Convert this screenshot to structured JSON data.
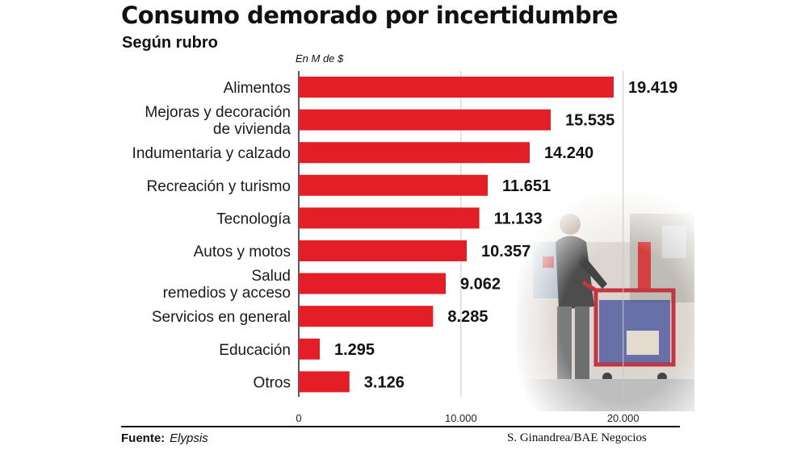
{
  "header": {
    "title": "Consumo demorado por incertidumbre",
    "subtitle": "Según rubro",
    "unit": "En M de $"
  },
  "footer": {
    "source_label": "Fuente:",
    "source_value": "Elypsis",
    "credit": "S. Ginandrea/BAE Negocios"
  },
  "colors": {
    "bar": "#e41e26",
    "grid": "#c8c8c8",
    "photo": "shopping-cart-photo"
  },
  "chart_data": {
    "type": "bar",
    "orientation": "horizontal",
    "title": "Consumo demorado por incertidumbre",
    "subtitle": "Según rubro",
    "unit": "En M de $",
    "categories": [
      [
        "Alimentos"
      ],
      [
        "Mejoras y decoración",
        "de vivienda"
      ],
      [
        "Indumentaria y calzado"
      ],
      [
        "Recreación y turismo"
      ],
      [
        "Tecnología"
      ],
      [
        "Autos y motos"
      ],
      [
        "Salud",
        "remedios y acceso"
      ],
      [
        "Servicios en general"
      ],
      [
        "Educación"
      ],
      [
        "Otros"
      ]
    ],
    "values": [
      19419,
      15535,
      14240,
      11651,
      11133,
      10357,
      9062,
      8285,
      1295,
      3126
    ],
    "value_labels": [
      "19.419",
      "15.535",
      "14.240",
      "11.651",
      "11.133",
      "10.357",
      "9.062",
      "8.285",
      "1.295",
      "3.126"
    ],
    "xlim": [
      0,
      23500
    ],
    "xticks": [
      0,
      10000,
      20000
    ],
    "xtick_labels": [
      "0",
      "10.000",
      "20.000"
    ],
    "grid": true
  }
}
